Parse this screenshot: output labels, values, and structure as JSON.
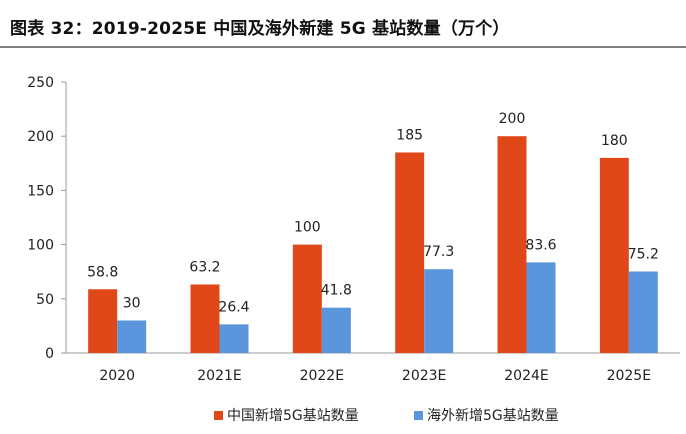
{
  "title": "图表 32：2019-2025E 中国及海外新建 5G 基站数量（万个）",
  "chart_data": {
    "type": "bar",
    "title": "图表 32：2019-2025E 中国及海外新建 5G 基站数量（万个）",
    "categories": [
      "2020",
      "2021E",
      "2022E",
      "2023E",
      "2024E",
      "2025E"
    ],
    "series": [
      {
        "name": "中国新增5G基站数量",
        "color": "#e0481a",
        "values": [
          58.8,
          63.2,
          100,
          185,
          200,
          180
        ]
      },
      {
        "name": "海外新增5G基站数量",
        "color": "#5b96dd",
        "values": [
          30,
          26.4,
          41.8,
          77.3,
          83.6,
          75.2
        ]
      }
    ],
    "ylim": [
      0,
      250
    ],
    "yticks": [
      0,
      50,
      100,
      150,
      200,
      250
    ],
    "xlabel": "",
    "ylabel": "",
    "grid": false,
    "legend_position": "bottom-center"
  }
}
